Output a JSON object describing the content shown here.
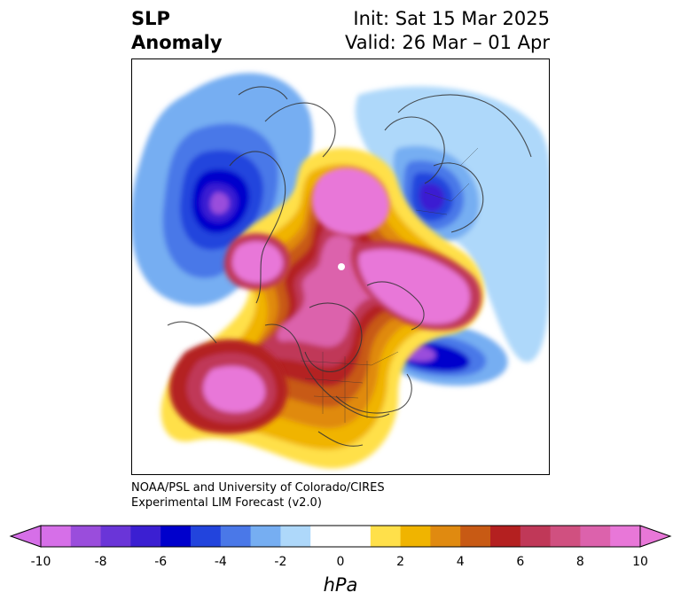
{
  "header": {
    "title_line1": "SLP",
    "title_line2": "Anomaly",
    "init_text": "Init: Sat 15 Mar 2025",
    "valid_text": "Valid: 26 Mar – 01 Apr"
  },
  "credit": {
    "line1": "NOAA/PSL and University of Colorado/CIRES",
    "line2": "Experimental LIM Forecast (v2.0)"
  },
  "colorbar": {
    "units": "hPa",
    "ticks": [
      "-10",
      "-8",
      "-6",
      "-4",
      "-2",
      "0",
      "2",
      "4",
      "6",
      "8",
      "10"
    ],
    "under_color": "#d66fe8",
    "over_color": "#e877d8",
    "colors": [
      "#d66fe8",
      "#9a4ddc",
      "#6a35d8",
      "#3b1fd2",
      "#0000cc",
      "#2244dd",
      "#4a78e8",
      "#76aef2",
      "#aed8fa",
      "#ffffff",
      "#ffffff",
      "#ffe04a",
      "#f0b400",
      "#e08a10",
      "#c85a14",
      "#b42020",
      "#c03858",
      "#d05080",
      "#dc62ac",
      "#e877d8"
    ]
  },
  "map": {
    "projection": "north-polar-stereographic",
    "variable": "sea-level-pressure-anomaly",
    "features": [
      {
        "name": "positive-anomaly-arctic",
        "sign": "positive",
        "peak_hPa": 10
      },
      {
        "name": "positive-anomaly-north-atlantic-europe",
        "sign": "positive",
        "peak_hPa": 10
      },
      {
        "name": "positive-anomaly-bering-siberia",
        "sign": "positive",
        "peak_hPa": 10
      },
      {
        "name": "positive-anomaly-north-pacific",
        "sign": "positive",
        "peak_hPa": 10
      },
      {
        "name": "positive-anomaly-north-america",
        "sign": "positive",
        "peak_hPa": 6
      },
      {
        "name": "negative-anomaly-western-europe",
        "sign": "negative",
        "peak_hPa": -6
      },
      {
        "name": "negative-anomaly-east-asia",
        "sign": "negative",
        "peak_hPa": -6
      },
      {
        "name": "negative-anomaly-central-asia",
        "sign": "negative",
        "peak_hPa": -10
      }
    ]
  }
}
